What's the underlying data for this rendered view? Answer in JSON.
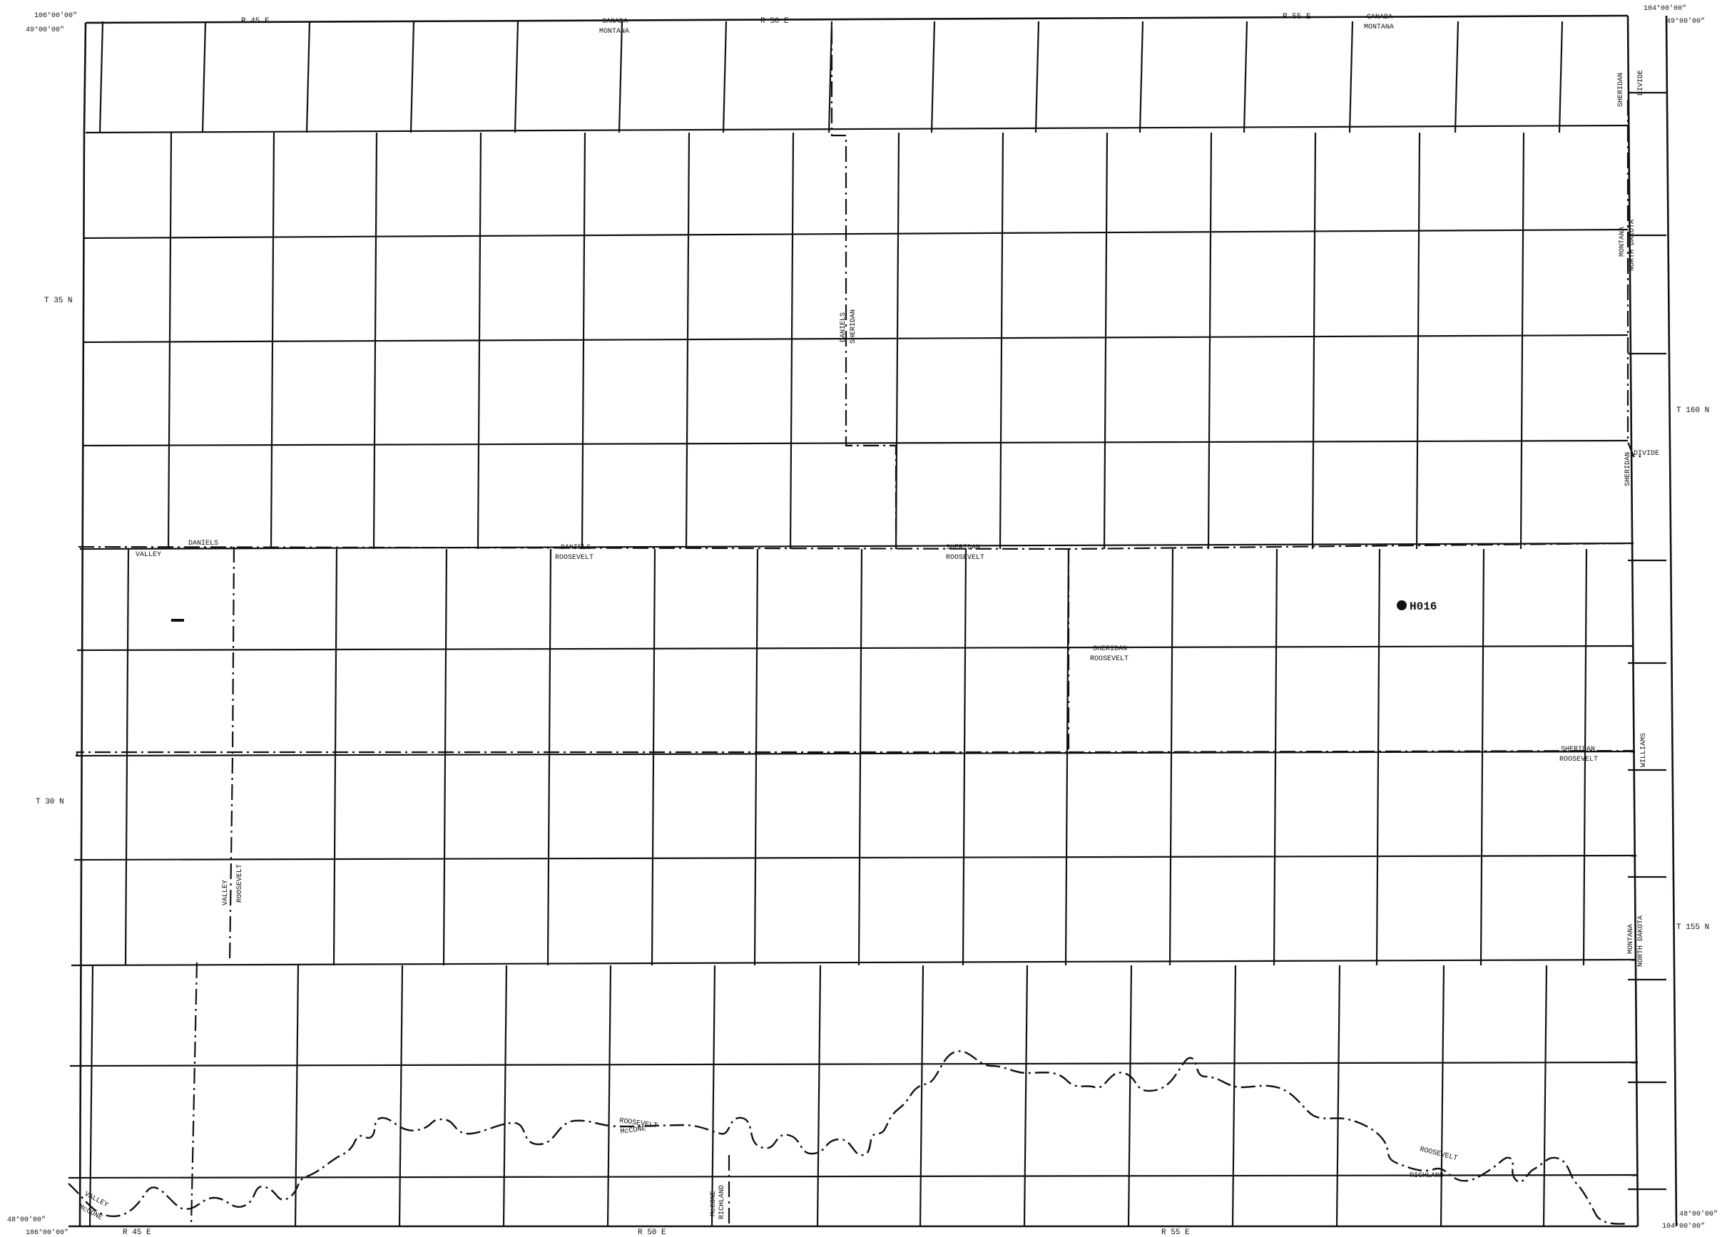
{
  "corners": {
    "top_left_lon": "106°00'00\"",
    "top_left_lat": "49°00'00\"",
    "top_right_lon": "104°00'00\"",
    "top_right_lat": "49°00'00\"",
    "bottom_left_lat": "48°00'00\"",
    "bottom_left_lon": "106°00'00\"",
    "bottom_right_lat": "48°00'00\"",
    "bottom_right_lon": "104°00'00\""
  },
  "ranges": {
    "top": [
      "R 45 E",
      "R 50 E",
      "R 55 E"
    ],
    "bottom": [
      "R 45 E",
      "R 50 E",
      "R 55 E"
    ]
  },
  "townships": {
    "left": [
      "T 35 N",
      "T 30 N"
    ],
    "right": [
      "T 160 N",
      "T 155 N"
    ]
  },
  "boundaries": {
    "canada_montana_1": [
      "CANADA",
      "MONTANA"
    ],
    "canada_montana_2": [
      "CANADA",
      "MONTANA"
    ],
    "sheridan_divide_top": [
      "SHERIDAN",
      "DIVIDE"
    ],
    "montana_nd_top": [
      "MONTANA",
      "NORTH DAKOTA"
    ],
    "daniels_sheridan": [
      "DANIELS",
      "SHERIDAN"
    ],
    "sheridan_divide_mid_a": "SHERIDAN",
    "sheridan_divide_mid_b": "DIVIDE",
    "valley_daniels_a": "DANIELS",
    "valley_daniels_b": "VALLEY",
    "daniels_roosevelt": [
      "DANIELS",
      "ROOSEVELT"
    ],
    "sheridan_roosevelt_1": [
      "SHERIDAN",
      "ROOSEVELT"
    ],
    "sheridan_roosevelt_2": [
      "SHERIDAN",
      "ROOSEVELT"
    ],
    "sheridan_roosevelt_3": [
      "SHERIDAN",
      "ROOSEVELT"
    ],
    "williams": "WILLIAMS",
    "valley_roosevelt": [
      "VALLEY",
      "ROOSEVELT"
    ],
    "montana_nd_bottom": [
      "MONTANA",
      "NORTH DAKOTA"
    ],
    "roosevelt_mccone": [
      "ROOSEVELT",
      "McCONE"
    ],
    "mccone_richland": [
      "McCONE",
      "RICHLAND"
    ],
    "roosevelt_richland": [
      "ROOSEVELT",
      "RICHLAND"
    ],
    "valley_mccone": [
      "VALLEY",
      "McCONE"
    ]
  },
  "well": {
    "label": "H016"
  }
}
